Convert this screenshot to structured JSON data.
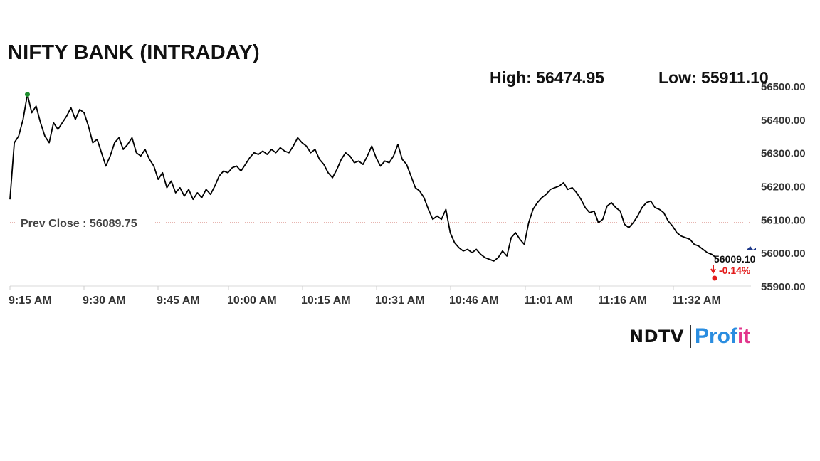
{
  "chart_data": {
    "type": "line",
    "title": "NIFTY BANK (INTRADAY)",
    "high_text": "High: 56474.95",
    "low_text": "Low: 55911.10",
    "prev_close_label": "Prev Close : 56089.75",
    "prev_close": 56089.75,
    "last_value": "56009.10",
    "change_text": "-0.14%",
    "ylim": [
      55900,
      56500
    ],
    "y_ticks": [
      56500,
      56400,
      56300,
      56200,
      56100,
      56000,
      55900
    ],
    "y_tick_labels": [
      "56500.00",
      "56400.00",
      "56300.00",
      "56200.00",
      "56100.00",
      "56000.00",
      "55900.00"
    ],
    "x_ticks": [
      "9:15 AM",
      "9:30 AM",
      "9:45 AM",
      "10:00 AM",
      "10:15 AM",
      "10:31 AM",
      "10:46 AM",
      "11:01 AM",
      "11:16 AM",
      "11:32 AM"
    ],
    "series": [
      {
        "values": [
          [
            0,
            56160
          ],
          [
            1,
            56330
          ],
          [
            2,
            56350
          ],
          [
            3,
            56400
          ],
          [
            4,
            56475
          ],
          [
            5,
            56420
          ],
          [
            6,
            56440
          ],
          [
            7,
            56390
          ],
          [
            8,
            56350
          ],
          [
            9,
            56330
          ],
          [
            10,
            56390
          ],
          [
            11,
            56370
          ],
          [
            12,
            56390
          ],
          [
            13,
            56410
          ],
          [
            14,
            56435
          ],
          [
            15,
            56400
          ],
          [
            16,
            56430
          ],
          [
            17,
            56420
          ],
          [
            18,
            56380
          ],
          [
            19,
            56330
          ],
          [
            20,
            56340
          ],
          [
            21,
            56300
          ],
          [
            22,
            56260
          ],
          [
            23,
            56290
          ],
          [
            24,
            56330
          ],
          [
            25,
            56345
          ],
          [
            26,
            56310
          ],
          [
            27,
            56325
          ],
          [
            28,
            56345
          ],
          [
            29,
            56300
          ],
          [
            30,
            56290
          ],
          [
            31,
            56310
          ],
          [
            32,
            56280
          ],
          [
            33,
            56260
          ],
          [
            34,
            56220
          ],
          [
            35,
            56240
          ],
          [
            36,
            56195
          ],
          [
            37,
            56215
          ],
          [
            38,
            56180
          ],
          [
            39,
            56195
          ],
          [
            40,
            56170
          ],
          [
            41,
            56190
          ],
          [
            42,
            56160
          ],
          [
            43,
            56180
          ],
          [
            44,
            56165
          ],
          [
            45,
            56190
          ],
          [
            46,
            56175
          ],
          [
            47,
            56200
          ],
          [
            48,
            56230
          ],
          [
            49,
            56245
          ],
          [
            50,
            56240
          ],
          [
            51,
            56255
          ],
          [
            52,
            56260
          ],
          [
            53,
            56245
          ],
          [
            54,
            56265
          ],
          [
            55,
            56285
          ],
          [
            56,
            56300
          ],
          [
            57,
            56295
          ],
          [
            58,
            56305
          ],
          [
            59,
            56295
          ],
          [
            60,
            56310
          ],
          [
            61,
            56300
          ],
          [
            62,
            56315
          ],
          [
            63,
            56305
          ],
          [
            64,
            56300
          ],
          [
            65,
            56320
          ],
          [
            66,
            56345
          ],
          [
            67,
            56330
          ],
          [
            68,
            56320
          ],
          [
            69,
            56300
          ],
          [
            70,
            56310
          ],
          [
            71,
            56280
          ],
          [
            72,
            56265
          ],
          [
            73,
            56240
          ],
          [
            74,
            56225
          ],
          [
            75,
            56250
          ],
          [
            76,
            56280
          ],
          [
            77,
            56300
          ],
          [
            78,
            56290
          ],
          [
            79,
            56270
          ],
          [
            80,
            56275
          ],
          [
            81,
            56265
          ],
          [
            82,
            56290
          ],
          [
            83,
            56320
          ],
          [
            84,
            56285
          ],
          [
            85,
            56260
          ],
          [
            86,
            56275
          ],
          [
            87,
            56270
          ],
          [
            88,
            56290
          ],
          [
            89,
            56325
          ],
          [
            90,
            56280
          ],
          [
            91,
            56265
          ],
          [
            92,
            56230
          ],
          [
            93,
            56195
          ],
          [
            94,
            56185
          ],
          [
            95,
            56165
          ],
          [
            96,
            56130
          ],
          [
            97,
            56100
          ],
          [
            98,
            56110
          ],
          [
            99,
            56100
          ],
          [
            100,
            56130
          ],
          [
            101,
            56060
          ],
          [
            102,
            56030
          ],
          [
            103,
            56015
          ],
          [
            104,
            56005
          ],
          [
            105,
            56010
          ],
          [
            106,
            56000
          ],
          [
            107,
            56010
          ],
          [
            108,
            55995
          ],
          [
            109,
            55985
          ],
          [
            110,
            55980
          ],
          [
            111,
            55975
          ],
          [
            112,
            55985
          ],
          [
            113,
            56005
          ],
          [
            114,
            55990
          ],
          [
            115,
            56045
          ],
          [
            116,
            56060
          ],
          [
            117,
            56040
          ],
          [
            118,
            56025
          ],
          [
            119,
            56090
          ],
          [
            120,
            56130
          ],
          [
            121,
            56150
          ],
          [
            122,
            56165
          ],
          [
            123,
            56175
          ],
          [
            124,
            56190
          ],
          [
            125,
            56195
          ],
          [
            126,
            56200
          ],
          [
            127,
            56210
          ],
          [
            128,
            56190
          ],
          [
            129,
            56195
          ],
          [
            130,
            56180
          ],
          [
            131,
            56160
          ],
          [
            132,
            56135
          ],
          [
            133,
            56120
          ],
          [
            134,
            56125
          ],
          [
            135,
            56090
          ],
          [
            136,
            56100
          ],
          [
            137,
            56140
          ],
          [
            138,
            56150
          ],
          [
            139,
            56135
          ],
          [
            140,
            56125
          ],
          [
            141,
            56085
          ],
          [
            142,
            56075
          ],
          [
            143,
            56090
          ],
          [
            144,
            56110
          ],
          [
            145,
            56135
          ],
          [
            146,
            56150
          ],
          [
            147,
            56155
          ],
          [
            148,
            56135
          ],
          [
            149,
            56130
          ],
          [
            150,
            56120
          ],
          [
            151,
            56095
          ],
          [
            152,
            56080
          ],
          [
            153,
            56060
          ],
          [
            154,
            56050
          ],
          [
            155,
            56045
          ],
          [
            156,
            56040
          ],
          [
            157,
            56025
          ],
          [
            158,
            56020
          ],
          [
            159,
            56010
          ],
          [
            160,
            56000
          ],
          [
            161,
            55995
          ],
          [
            162,
            55985
          ]
        ]
      }
    ],
    "colors": {
      "line": "#000000",
      "prev_close_line": "#c0392b",
      "open_marker": "#1e8c2e",
      "last_marker": "#e31b1b",
      "change_text": "#e31b1b",
      "axis_text": "#333333"
    }
  },
  "brand": {
    "ndtv": "NDTV",
    "profit_main": "Prof",
    "profit_accent": "it"
  }
}
